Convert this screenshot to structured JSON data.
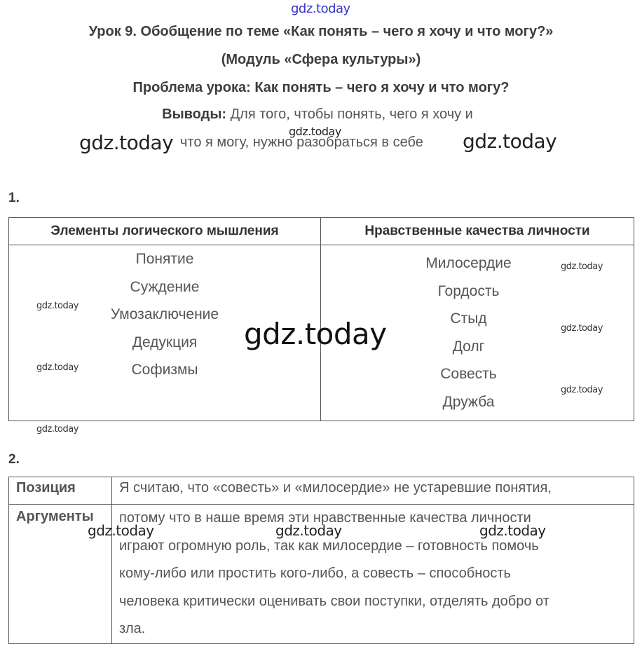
{
  "watermark": "gdz.today",
  "header": {
    "title": "Урок 9. Обобщение по теме «Как понять – чего я хочу и что могу?»",
    "module": "(Модуль «Сфера культуры»)",
    "problem": "Проблема урока: Как понять – чего я хочу и что могу?",
    "conclusions_label": "Выводы:",
    "conclusions_line1": "Для того, чтобы понять, чего я хочу и",
    "conclusions_line2": "что я могу, нужно разобраться в себе"
  },
  "task1": {
    "number": "1.",
    "columns": [
      "Элементы логического мышления",
      "Нравственные качества личности"
    ],
    "logic_elements": [
      "Понятие",
      "Суждение",
      "Умозаключение",
      "Дедукция",
      "Софизмы"
    ],
    "moral_qualities": [
      "Милосердие",
      "Гордость",
      "Стыд",
      "Долг",
      "Совесть",
      "Дружба"
    ]
  },
  "task2": {
    "number": "2.",
    "position_label": "Позиция",
    "position_text": "Я считаю, что «совесть» и «милосердие» не устаревшие понятия,",
    "arguments_label": "Аргументы",
    "arguments_lines": [
      "потому что в наше время эти нравственные качества личности",
      "играют огромную роль, так как милосердие – готовность помочь",
      "кому-либо или простить кого-либо, а совесть – способность",
      "человека критически оценивать свои поступки, отделять добро от",
      "зла."
    ]
  },
  "colors": {
    "text": "#3a3a3a",
    "watermark_top": "#3333cc"
  }
}
